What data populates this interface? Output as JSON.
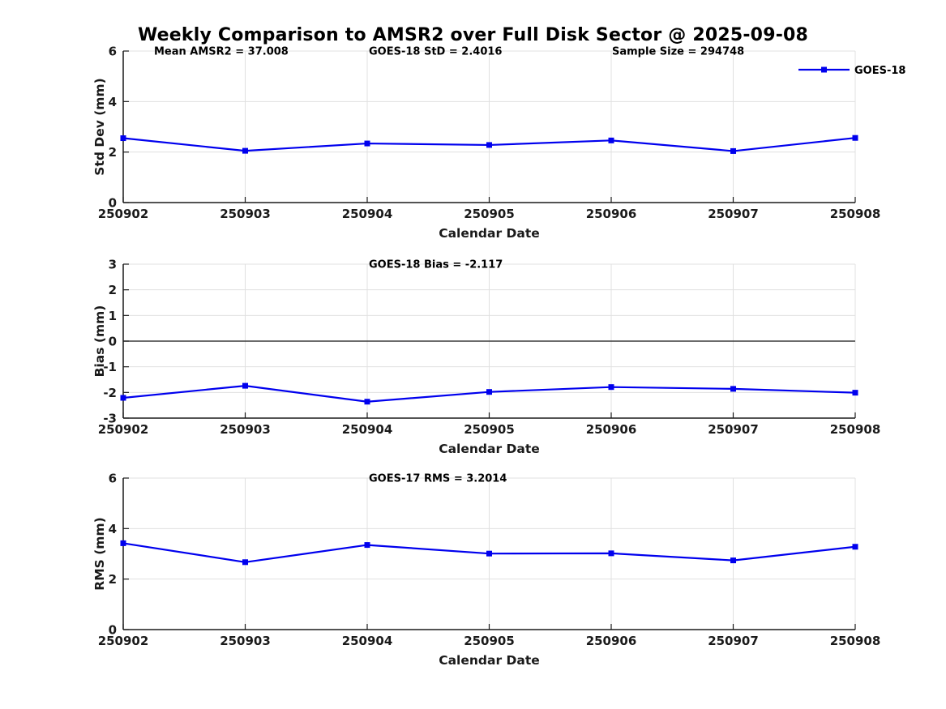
{
  "figure": {
    "title": "Weekly Comparison to AMSR2 over Full Disk Sector @ 2025-09-08",
    "background": "#FFFFFF"
  },
  "colors": {
    "line": "#0000EE",
    "grid": "#E0E0E0",
    "axis": "#1A1A1A",
    "zero_line": "#3A3A3A",
    "text": "#1A1A1A"
  },
  "chart_data": [
    {
      "type": "line",
      "ylabel": "Std Dev (mm)",
      "xlabel": "Calendar Date",
      "x_categories": [
        "250902",
        "250903",
        "250904",
        "250905",
        "250906",
        "250907",
        "250908"
      ],
      "ylim": [
        0,
        6
      ],
      "yticks": [
        0,
        2,
        4,
        6
      ],
      "grid": true,
      "annotations": [
        "Mean AMSR2 = 37.008",
        "GOES-18 StD = 2.4016",
        "Sample Size = 294748"
      ],
      "legend": {
        "show": true,
        "position": "northeast",
        "entries": [
          "GOES-18"
        ]
      },
      "series": [
        {
          "name": "GOES-18",
          "marker": "square",
          "values": [
            2.55,
            2.05,
            2.34,
            2.28,
            2.46,
            2.04,
            2.56
          ]
        }
      ]
    },
    {
      "type": "line",
      "ylabel": "Bias (mm)",
      "xlabel": "Calendar Date",
      "x_categories": [
        "250902",
        "250903",
        "250904",
        "250905",
        "250906",
        "250907",
        "250908"
      ],
      "ylim": [
        -3,
        3
      ],
      "yticks": [
        -3,
        -2,
        -1,
        0,
        1,
        2,
        3
      ],
      "grid": true,
      "zero_line": true,
      "annotations": [
        "GOES-18 Bias  = -2.117"
      ],
      "legend": {
        "show": false
      },
      "series": [
        {
          "name": "GOES-18",
          "marker": "square",
          "values": [
            -2.21,
            -1.74,
            -2.36,
            -1.98,
            -1.79,
            -1.86,
            -2.01
          ]
        }
      ]
    },
    {
      "type": "line",
      "ylabel": "RMS (mm)",
      "xlabel": "Calendar Date",
      "x_categories": [
        "250902",
        "250903",
        "250904",
        "250905",
        "250906",
        "250907",
        "250908"
      ],
      "ylim": [
        0,
        6
      ],
      "yticks": [
        0,
        2,
        4,
        6
      ],
      "grid": true,
      "annotations": [
        "GOES-17 RMS = 3.2014"
      ],
      "legend": {
        "show": false
      },
      "series": [
        {
          "name": "GOES-18",
          "marker": "square",
          "values": [
            3.42,
            2.67,
            3.35,
            3.01,
            3.02,
            2.74,
            3.28
          ]
        }
      ]
    }
  ]
}
